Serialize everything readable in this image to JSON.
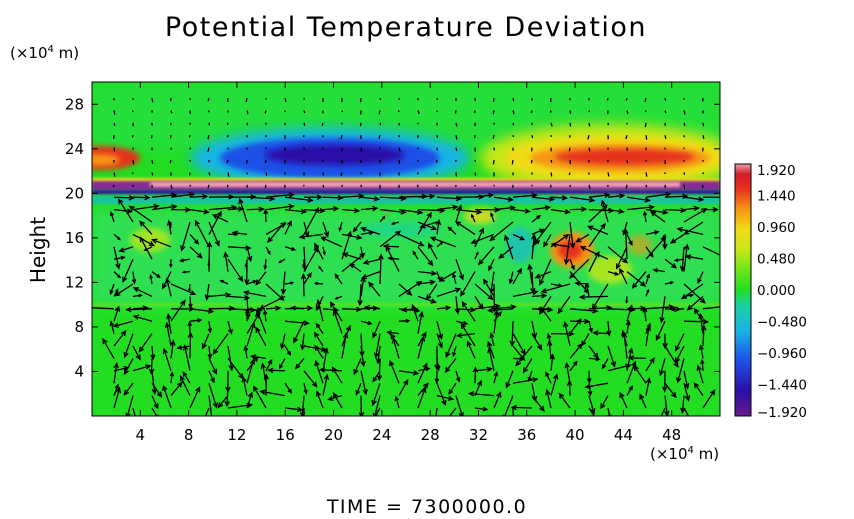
{
  "chart_data": {
    "type": "heatmap",
    "title": "Potential Temperature Deviation",
    "ylabel": "Height",
    "y_unit_prefix": "(×10",
    "y_unit_exp": "4",
    "y_unit_suffix": " m)",
    "x_unit_prefix": "(×10",
    "x_unit_exp": "4",
    "x_unit_suffix": " m)",
    "xlim": [
      0,
      52
    ],
    "ylim": [
      0,
      30
    ],
    "xticks": [
      4,
      8,
      12,
      16,
      20,
      24,
      28,
      32,
      36,
      40,
      44,
      48
    ],
    "yticks": [
      4,
      8,
      12,
      16,
      20,
      24,
      28
    ],
    "colorbar": {
      "min": -1.92,
      "max": 1.92,
      "labels": [
        "1.920",
        "1.440",
        "0.960",
        "0.480",
        "0.000",
        "−0.480",
        "−0.960",
        "−1.440",
        "−1.920"
      ],
      "values": [
        1.92,
        1.44,
        0.96,
        0.48,
        0.0,
        -0.48,
        -0.96,
        -1.44,
        -1.92
      ]
    },
    "features": [
      {
        "name": "cold anomaly",
        "x": 21,
        "y": 23.5,
        "value": -1.9
      },
      {
        "name": "warm anomaly",
        "x": 44,
        "y": 23.5,
        "value": 1.9
      },
      {
        "name": "warm layer",
        "x": 26,
        "y": 20.8,
        "value": 1.9
      },
      {
        "name": "cold band",
        "x": 26,
        "y": 20.2,
        "value": -1.9
      },
      {
        "name": "warm spot",
        "x": 39,
        "y": 15,
        "value": 1.5
      }
    ],
    "grid": false,
    "legend": "colorbar-right"
  },
  "footer": {
    "time_text": "TIME  =  7300000.0"
  },
  "colors": {
    "background": "#ffffff",
    "text": "#000000",
    "arrow": "#000000",
    "field_base": "#22dd22"
  }
}
